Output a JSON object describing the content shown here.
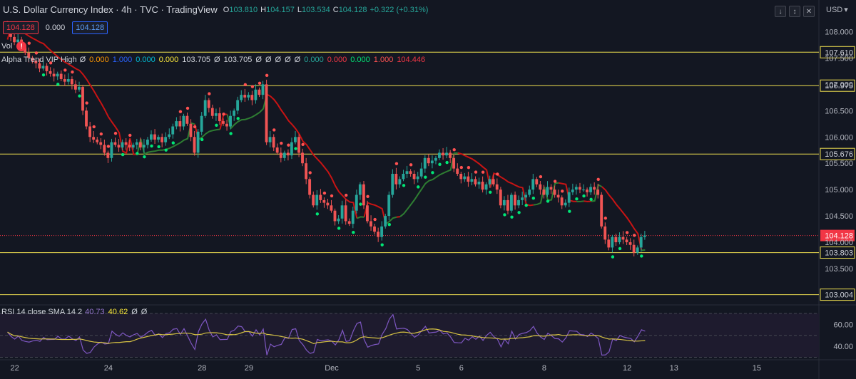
{
  "header": {
    "title": "U.S. Dollar Currency Index · 4h · TVC · TradingView",
    "ohlc": [
      {
        "k": "O",
        "v": "103.810"
      },
      {
        "k": "H",
        "v": "104.157"
      },
      {
        "k": "L",
        "v": "103.534"
      },
      {
        "k": "C",
        "v": "104.128"
      },
      {
        "k": "",
        "v": "+0.322 (+0.31%)"
      }
    ],
    "price_boxes": [
      "104.128",
      "0.000",
      "104.128"
    ],
    "currency": "USD",
    "currency_arrow": "▾",
    "controls": [
      "↓",
      "↕",
      "✕"
    ]
  },
  "volume_label": "Vol",
  "warning_glyph": "!",
  "indicator": {
    "name": "Alpha Trend VIP High",
    "values": [
      {
        "v": "Ø",
        "c": "#d1d4dc"
      },
      {
        "v": "0.000",
        "c": "#ff9800"
      },
      {
        "v": "1.000",
        "c": "#2962ff"
      },
      {
        "v": "0.000",
        "c": "#00bcd4"
      },
      {
        "v": "0.000",
        "c": "#ffeb3b"
      },
      {
        "v": "103.705",
        "c": "#d1d4dc"
      },
      {
        "v": "Ø",
        "c": "#d1d4dc"
      },
      {
        "v": "103.705",
        "c": "#d1d4dc"
      },
      {
        "v": "Ø",
        "c": "#d1d4dc"
      },
      {
        "v": "Ø",
        "c": "#d1d4dc"
      },
      {
        "v": "Ø",
        "c": "#d1d4dc"
      },
      {
        "v": "Ø",
        "c": "#d1d4dc"
      },
      {
        "v": "Ø",
        "c": "#d1d4dc"
      },
      {
        "v": "0.000",
        "c": "#26a69a"
      },
      {
        "v": "0.000",
        "c": "#f23645"
      },
      {
        "v": "0.000",
        "c": "#00e676"
      },
      {
        "v": "1.000",
        "c": "#ff5252"
      },
      {
        "v": "104.446",
        "c": "#f23645"
      }
    ]
  },
  "rsi": {
    "name": "RSI 14 close SMA 14 2",
    "values": [
      {
        "v": "40.73",
        "c": "#9575cd"
      },
      {
        "v": "40.62",
        "c": "#ffeb3b"
      },
      {
        "v": "Ø",
        "c": "#d1d4dc"
      },
      {
        "v": "Ø",
        "c": "#d1d4dc"
      }
    ]
  },
  "colors": {
    "up": "#26a69a",
    "up_bright": "#4caf50",
    "down": "#f05454",
    "bg": "#131722",
    "grid": "#1f2330",
    "axis_text": "#b2b5be",
    "level_line": "#f0e050",
    "trend_red": "#c81414",
    "trend_green": "#2e7d32",
    "trend_orange": "#ff9800",
    "rsi_line": "#7e57c2",
    "rsi_sma": "#d6c243"
  },
  "chart_data": {
    "type": "candlestick",
    "price_axis": {
      "ylim": [
        102.85,
        108.25
      ],
      "ticks": [
        "108.000",
        "107.500",
        "107.000",
        "106.500",
        "106.000",
        "105.500",
        "105.000",
        "104.500",
        "104.000",
        "103.500"
      ]
    },
    "x_labels": [
      {
        "label": "22",
        "bar": 2
      },
      {
        "label": "24",
        "bar": 28
      },
      {
        "label": "28",
        "bar": 54
      },
      {
        "label": "29",
        "bar": 67
      },
      {
        "label": "Dec",
        "bar": 90
      },
      {
        "label": "5",
        "bar": 114
      },
      {
        "label": "6",
        "bar": 126
      },
      {
        "label": "8",
        "bar": 149
      },
      {
        "label": "12",
        "bar": 172
      },
      {
        "label": "13",
        "bar": 185
      },
      {
        "label": "15",
        "bar": 208
      }
    ],
    "bar_count": 199,
    "levels": [
      {
        "label": "107.610",
        "y": 107.61
      },
      {
        "label": "106.975",
        "y": 106.975
      },
      {
        "label": "105.676",
        "y": 105.676
      },
      {
        "label": "103.803",
        "y": 103.803
      },
      {
        "label": "103.004",
        "y": 103.004
      }
    ],
    "current_price": {
      "label": "104.128",
      "y": 104.128
    },
    "closes": [
      108.0,
      107.9,
      107.8,
      107.85,
      107.7,
      107.6,
      107.5,
      107.45,
      107.4,
      107.3,
      107.35,
      107.25,
      107.2,
      107.15,
      107.2,
      107.1,
      107.05,
      107.1,
      107.0,
      106.9,
      106.95,
      106.5,
      106.2,
      106.0,
      105.95,
      105.9,
      105.85,
      105.7,
      105.6,
      105.9,
      105.85,
      105.8,
      105.9,
      105.85,
      105.8,
      105.85,
      105.9,
      105.8,
      105.85,
      105.95,
      106.05,
      105.95,
      106.0,
      105.9,
      106.0,
      106.05,
      106.2,
      106.3,
      106.2,
      106.4,
      106.25,
      106.0,
      105.7,
      106.1,
      106.4,
      106.7,
      106.55,
      106.4,
      106.45,
      106.3,
      106.25,
      106.2,
      106.4,
      106.5,
      106.7,
      106.8,
      106.75,
      106.8,
      106.7,
      106.9,
      106.8,
      107.0,
      105.9,
      106.0,
      105.8,
      105.7,
      105.6,
      105.7,
      105.65,
      105.9,
      106.0,
      105.7,
      105.5,
      105.2,
      104.9,
      104.7,
      104.9,
      104.8,
      104.75,
      104.7,
      104.6,
      104.4,
      104.45,
      104.7,
      104.4,
      104.35,
      104.6,
      104.9,
      105.1,
      104.7,
      104.4,
      104.3,
      104.2,
      104.1,
      104.3,
      104.5,
      104.9,
      105.3,
      105.1,
      105.2,
      105.3,
      105.35,
      105.3,
      105.2,
      105.25,
      105.4,
      105.6,
      105.5,
      105.55,
      105.6,
      105.7,
      105.65,
      105.7,
      105.6,
      105.4,
      105.3,
      105.2,
      105.25,
      105.15,
      105.2,
      105.1,
      105.15,
      105.0,
      105.1,
      105.2,
      105.1,
      105.0,
      104.7,
      104.8,
      104.6,
      104.9,
      104.7,
      104.8,
      104.85,
      104.9,
      105.0,
      105.2,
      105.1,
      105.0,
      104.9,
      105.05,
      105.0,
      104.9,
      104.85,
      104.7,
      104.75,
      104.95,
      105.0,
      105.05,
      105.0,
      105.0,
      104.95,
      105.05,
      105.0,
      104.9,
      104.3,
      104.05,
      103.9,
      104.1,
      104.0,
      104.1,
      104.05,
      104.0,
      103.95,
      103.8,
      103.9,
      104.1,
      104.128
    ],
    "rsi": {
      "ylim": [
        31,
        70
      ],
      "ticks": [
        "60.00",
        "40.00"
      ]
    }
  }
}
